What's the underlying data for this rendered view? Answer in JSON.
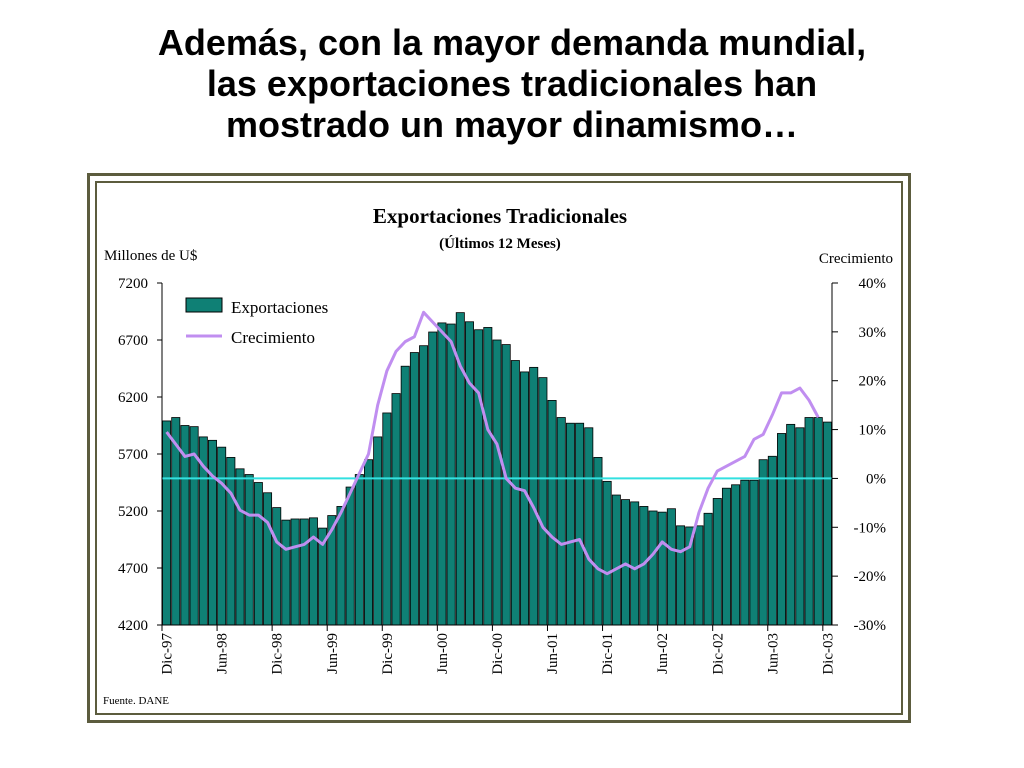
{
  "slide": {
    "title_lines": [
      "Además, con la mayor demanda mundial,",
      "las exportaciones tradicionales han",
      "mostrado un mayor dinamismo…"
    ]
  },
  "chart_data": {
    "type": "bar",
    "title": "Exportaciones Tradicionales",
    "subtitle": "(Últimos 12 Meses)",
    "y_left_label": "Millones de U$",
    "y_right_label": "Crecimiento",
    "source": "Fuente. DANE",
    "y_left": {
      "min": 4200,
      "max": 7200,
      "ticks": [
        7200,
        6700,
        6200,
        5700,
        5200,
        4700,
        4200
      ]
    },
    "y_right": {
      "min": -30,
      "max": 40,
      "ticks": [
        "40%",
        "30%",
        "20%",
        "10%",
        "0%",
        "-10%",
        "-20%",
        "-30%"
      ]
    },
    "x_tick_labels": [
      "Dic-97",
      "Jun-98",
      "Dic-98",
      "Jun-99",
      "Dic-99",
      "Jun-00",
      "Dic-00",
      "Jun-01",
      "Dic-01",
      "Jun-02",
      "Dic-02",
      "Jun-03",
      "Dic-03"
    ],
    "legend": {
      "position": "top-left"
    },
    "zero_line_color": "#33e0e0",
    "series": [
      {
        "name": "Exportaciones",
        "type": "bar",
        "axis": "left",
        "color": "#0f8075",
        "values": [
          5990,
          6020,
          5950,
          5940,
          5850,
          5820,
          5760,
          5670,
          5570,
          5520,
          5450,
          5360,
          5230,
          5120,
          5130,
          5130,
          5140,
          5050,
          5160,
          5240,
          5410,
          5520,
          5650,
          5850,
          6060,
          6230,
          6470,
          6590,
          6650,
          6770,
          6850,
          6840,
          6940,
          6860,
          6790,
          6810,
          6700,
          6660,
          6520,
          6420,
          6460,
          6370,
          6170,
          6020,
          5970,
          5970,
          5930,
          5670,
          5460,
          5340,
          5300,
          5280,
          5240,
          5200,
          5190,
          5220,
          5070,
          5060,
          5070,
          5180,
          5310,
          5400,
          5430,
          5470,
          5470,
          5650,
          5680,
          5880,
          5960,
          5930,
          6020,
          6020,
          5980
        ]
      },
      {
        "name": "Crecimiento",
        "type": "line",
        "axis": "right",
        "color": "#c08ef0",
        "values": [
          9.5,
          7,
          4.5,
          5,
          2.5,
          0.5,
          -1,
          -3,
          -6.5,
          -7.5,
          -7.5,
          -9,
          -13,
          -14.5,
          -14,
          -13.5,
          -12,
          -13.5,
          -10.5,
          -7,
          -3,
          1,
          5,
          15,
          22,
          26,
          28,
          29,
          34,
          32,
          30,
          28,
          23,
          19.5,
          17.5,
          10,
          7,
          0,
          -2,
          -2.5,
          -6,
          -10,
          -12,
          -13.5,
          -13,
          -12.5,
          -16.5,
          -18.5,
          -19.5,
          -18.5,
          -17.5,
          -18.5,
          -17.5,
          -15.5,
          -13,
          -14.5,
          -15,
          -14,
          -7,
          -2,
          1.5,
          2.5,
          3.5,
          4.5,
          8,
          9,
          13,
          17.5,
          17.5,
          18.5,
          16,
          12.5
        ]
      }
    ]
  }
}
